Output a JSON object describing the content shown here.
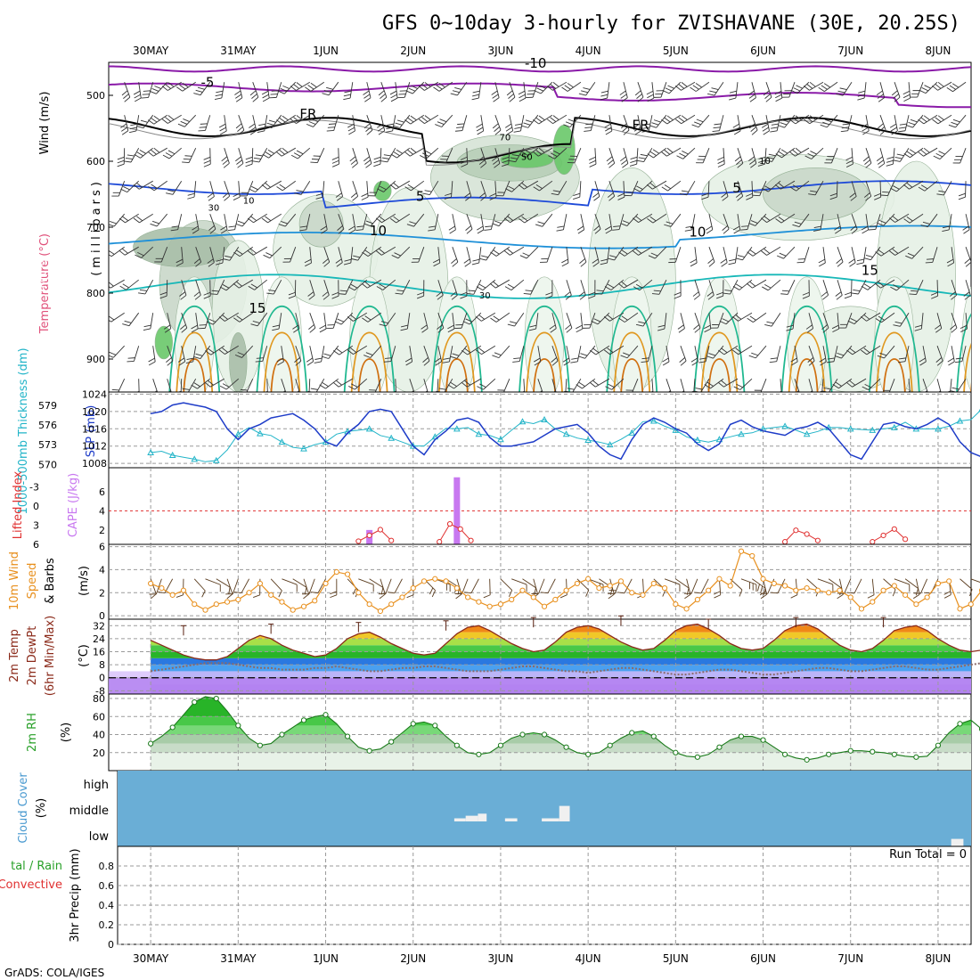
{
  "title": "GFS 0~10day 3-hourly for ZVISHAVANE (30E, 20.25S)",
  "footer": "GrADS: COLA/IGES",
  "run_total_label": "Run Total = 0",
  "dates": [
    "30MAY",
    "31MAY",
    "1JUN",
    "2JUN",
    "3JUN",
    "4JUN",
    "5JUN",
    "6JUN",
    "7JUN",
    "8JUN"
  ],
  "panel_labels": {
    "profile": {
      "wind": "Wind (m/s)",
      "temperature": "Temperature (°C)",
      "rh": "RH (%)",
      "millibars": "(millibars)"
    },
    "slp": {
      "thickness": "1000-500mb Thickness (dm)",
      "slp": "SLP (mb)"
    },
    "cape": {
      "li": "Lifted Index",
      "cape": "CAPE (J/kg)"
    },
    "wind10": {
      "a": "10m Wind",
      "b": "Speed",
      "c": "& Barbs",
      "unit": "(m/s)"
    },
    "temp2m": {
      "a": "2m Temp",
      "b": "2m DewPt",
      "c": "(6hr Min/Max)",
      "unit": "(°C)"
    },
    "rh2m": {
      "a": "2m RH",
      "unit": "(%)"
    },
    "cloud": {
      "a": "Cloud Cover",
      "unit": "(%)"
    },
    "precip": {
      "a": "tal / Rain",
      "b": "Convective",
      "c": "3hr Precip (mm)"
    }
  },
  "colors": {
    "slp_line": "#1e3cc8",
    "thickness_line": "#22b4c8",
    "cape_bar": "#c878f0",
    "li_line": "#e03030",
    "wind_line": "#e8901e",
    "barb": "#5a3c1e",
    "rh_fill": "#28c828",
    "cloud_bg": "#6aaed6",
    "temp_line": "#8b2a1a",
    "dew_line": "#8a6a6a"
  },
  "chart_data": [
    {
      "type": "heatmap",
      "name": "profile",
      "ylabel": "Temperature (°C) Wind (m/s) (millibars)",
      "yticks": [
        500,
        600,
        700,
        800,
        900
      ],
      "ylim": [
        950,
        450
      ],
      "contour_labels": [
        {
          "text": "-10",
          "x": 4.4,
          "p": 458
        },
        {
          "text": "-5",
          "x": 0.65,
          "p": 487
        },
        {
          "text": "FR",
          "x": 1.8,
          "p": 535
        },
        {
          "text": "FR",
          "x": 5.6,
          "p": 552
        },
        {
          "text": "5",
          "x": 3.08,
          "p": 660
        },
        {
          "text": "5",
          "x": 6.7,
          "p": 647
        },
        {
          "text": "10",
          "x": 2.6,
          "p": 712
        },
        {
          "text": "10",
          "x": 6.25,
          "p": 714
        },
        {
          "text": "15",
          "x": 8.22,
          "p": 772
        },
        {
          "text": "15",
          "x": 1.22,
          "p": 830
        },
        {
          "text": "30",
          "x": 0.72,
          "p": 675
        },
        {
          "text": "10",
          "x": 1.12,
          "p": 664
        },
        {
          "text": "30",
          "x": 3.82,
          "p": 808
        },
        {
          "text": "50",
          "x": 4.3,
          "p": 598
        },
        {
          "text": "70",
          "x": 4.05,
          "p": 568
        },
        {
          "text": "10",
          "x": 7.02,
          "p": 604
        }
      ]
    },
    {
      "type": "line",
      "name": "slp-thickness",
      "yticks_left": [
        570,
        573,
        576,
        579
      ],
      "ylim_left": [
        569.5,
        581
      ],
      "yticks_right": [
        1008,
        1012,
        1016,
        1020,
        1024
      ],
      "ylim_right": [
        1007,
        1024.5
      ],
      "x_step_days": 0.125,
      "series": [
        {
          "name": "SLP (mb)",
          "axis": "right",
          "values": [
            1019.5,
            1020,
            1021.5,
            1022,
            1021.5,
            1021,
            1020,
            1016,
            1013.5,
            1016,
            1017,
            1018.5,
            1019,
            1019.5,
            1018,
            1016,
            1013,
            1012,
            1015,
            1017,
            1020,
            1020.5,
            1020,
            1016,
            1012,
            1010,
            1013.5,
            1015.5,
            1018,
            1018.5,
            1017.5,
            1014,
            1012,
            1012,
            1012.5,
            1013,
            1014.5,
            1016,
            1016.5,
            1017,
            1015,
            1012,
            1010,
            1009,
            1013.5,
            1017,
            1018.5,
            1017.5,
            1016,
            1015,
            1012.5,
            1011,
            1012.5,
            1017,
            1018,
            1016.5,
            1015.5,
            1015,
            1014.5,
            1016,
            1016.5,
            1017.5,
            1016,
            1013,
            1010,
            1009,
            1013,
            1017,
            1017.5,
            1016.5,
            1016,
            1017,
            1018.5,
            1017,
            1013,
            1010.5,
            1009.5,
            1012,
            1016.5,
            1016,
            1013.5,
            1013.5,
            1017,
            1020,
            1020.5,
            1020,
            1020,
            1019,
            1016.5,
            1013,
            1012,
            1018.5,
            1020,
            1021,
            1024
          ]
        },
        {
          "name": "1000-500mb Thickness (dm)",
          "axis": "left",
          "values": [
            571.8,
            572,
            571.4,
            571.1,
            570.8,
            570.4,
            570.6,
            572.2,
            574.6,
            575.6,
            574.7,
            574.4,
            573.4,
            572.6,
            572.4,
            573,
            573.4,
            574.6,
            575,
            575.2,
            575.4,
            574.4,
            574,
            573.4,
            572.8,
            572.8,
            574.2,
            575.5,
            575.4,
            575.6,
            574.6,
            574.4,
            573.8,
            575.2,
            576.5,
            576.2,
            576.8,
            575.4,
            574.6,
            574,
            573.7,
            573.4,
            573,
            573.8,
            574.8,
            576.5,
            576.6,
            575.8,
            575.2,
            574.2,
            573.7,
            573.4,
            573.8,
            574.2,
            574.6,
            574.8,
            575.4,
            575.6,
            575.8,
            575.2,
            574.6,
            575,
            575.6,
            575.6,
            575.4,
            575.3,
            575.2,
            575.4,
            575.6,
            576.4,
            575.4,
            575.4,
            575.4,
            575.8,
            576.6,
            576.8,
            578.4,
            579.8,
            579.4,
            577.6,
            576.4,
            576.2,
            576.2,
            576.8,
            577.6,
            578.4,
            579.4,
            578.8,
            577.4,
            574.8,
            573.4,
            571.8,
            570.6,
            570.6,
            571
          ]
        }
      ]
    },
    {
      "type": "bar",
      "name": "cape-li",
      "yticks_left": [
        -3,
        0,
        3,
        6
      ],
      "ylim_left": [
        6,
        -6
      ],
      "yticks_right": [
        2,
        4,
        6
      ],
      "ylim_right": [
        0.5,
        8.5
      ],
      "zero_line_cape": 4,
      "cape_bars": [
        {
          "x": 2.5,
          "value": 2
        },
        {
          "x": 3.5,
          "value": 7.5
        }
      ],
      "li_segments": [
        {
          "x": [
            2.375,
            2.5,
            2.625,
            2.75
          ],
          "values": [
            5.5,
            4.6,
            3.7,
            5.4
          ]
        },
        {
          "x": [
            3.3,
            3.42,
            3.54,
            3.66
          ],
          "values": [
            5.6,
            2.8,
            3.6,
            5.4
          ]
        },
        {
          "x": [
            7.25,
            7.375,
            7.5,
            7.625
          ],
          "values": [
            5.6,
            3.8,
            4.4,
            5.4
          ]
        },
        {
          "x": [
            8.25,
            8.375,
            8.5,
            8.625
          ],
          "values": [
            5.6,
            4.6,
            3.6,
            5.2
          ]
        }
      ]
    },
    {
      "type": "line",
      "name": "wind-10m",
      "yticks": [
        0,
        2,
        4,
        6
      ],
      "ylim": [
        -0.3,
        6.2
      ],
      "x_step_days": 0.125,
      "series": [
        {
          "name": "Speed",
          "values": [
            2.8,
            2.4,
            1.8,
            2.2,
            1,
            0.5,
            1,
            1.2,
            1.4,
            2,
            2.8,
            1.8,
            1.2,
            0.5,
            0.8,
            1.3,
            2.8,
            3.8,
            3.6,
            2,
            1,
            0.4,
            1,
            1.6,
            2.4,
            3,
            3.2,
            3,
            2.4,
            1.6,
            1.2,
            0.8,
            1,
            1.4,
            2.2,
            1.6,
            0.8,
            1.4,
            2.2,
            2.8,
            3.2,
            2.4,
            2.6,
            3,
            2,
            1.8,
            2.8,
            2.4,
            1,
            0.6,
            1.4,
            2.2,
            3.2,
            2.6,
            5.6,
            5.2,
            3.2,
            2.8,
            2.6,
            2.2,
            2.4,
            2.2,
            2,
            2.2,
            1.6,
            0.6,
            1.2,
            2.2,
            2.6,
            1.8,
            1,
            1.6,
            2.8,
            3,
            0.6,
            1,
            2.2,
            2.6,
            2.2,
            2.4,
            1.4,
            0.8,
            2.6,
            3.2,
            4,
            4.4,
            4.6,
            3.2,
            2.4,
            0.6,
            1.2,
            2.4,
            1.6,
            0.4,
            3.8
          ]
        }
      ]
    },
    {
      "type": "area",
      "name": "temp-2m",
      "yticks": [
        -8,
        0,
        8,
        16,
        24,
        32
      ],
      "ylim": [
        -10,
        36
      ],
      "x_step_days": 0.125,
      "series": [
        {
          "name": "2m Temp",
          "values": [
            23,
            20,
            17,
            14,
            12,
            11,
            11,
            13,
            18,
            23,
            26,
            24,
            20,
            17,
            15,
            13,
            14,
            18,
            24,
            27,
            28,
            25,
            21,
            18,
            15,
            14,
            15,
            21,
            27,
            31,
            32,
            29,
            25,
            21,
            18,
            16,
            17,
            22,
            28,
            31,
            32,
            30,
            26,
            22,
            19,
            17,
            18,
            23,
            29,
            32,
            33,
            30,
            26,
            21,
            18,
            17,
            18,
            23,
            29,
            32,
            33,
            30,
            25,
            20,
            17,
            16,
            18,
            23,
            29,
            31,
            32,
            29,
            24,
            20,
            17,
            16,
            17,
            22,
            28,
            31,
            32,
            29,
            24,
            20,
            18,
            17,
            18,
            23,
            29,
            32,
            32,
            28,
            23,
            19,
            17,
            15,
            14,
            13
          ]
        },
        {
          "name": "2m DewPt",
          "values": [
            4,
            5,
            6,
            7,
            8,
            9,
            9,
            9,
            8,
            7,
            6,
            6,
            5,
            5,
            5,
            6,
            6,
            7,
            6,
            5,
            4,
            4,
            5,
            6,
            6,
            7,
            7,
            6,
            5,
            4,
            4,
            4,
            5,
            6,
            7,
            7,
            6,
            5,
            4,
            4,
            3,
            4,
            5,
            6,
            6,
            5,
            4,
            3,
            2,
            2,
            3,
            4,
            5,
            5,
            4,
            3,
            2,
            2,
            3,
            4,
            5,
            6,
            6,
            5,
            4,
            4,
            5,
            6,
            7,
            7,
            6,
            5,
            5,
            6,
            7,
            8,
            9,
            9,
            8,
            7,
            7,
            8,
            8,
            7,
            6,
            5,
            4,
            3,
            2,
            1,
            0,
            -1,
            -2,
            -4,
            -6,
            -4
          ]
        },
        {
          "name": "6hr Max",
          "x": [
            0.375,
            1.375,
            2.375,
            3.375,
            4.375,
            5.375,
            6.375,
            7.375,
            8.375
          ],
          "values": [
            26,
            27,
            28,
            29,
            31,
            32,
            30,
            31,
            31
          ]
        }
      ]
    },
    {
      "type": "area",
      "name": "rh-2m",
      "yticks": [
        20,
        40,
        60,
        80
      ],
      "ylim": [
        0,
        85
      ],
      "x_step_days": 0.125,
      "series": [
        {
          "name": "2m RH",
          "values": [
            30,
            38,
            48,
            62,
            76,
            82,
            80,
            66,
            50,
            36,
            28,
            30,
            40,
            48,
            56,
            60,
            62,
            52,
            38,
            26,
            22,
            24,
            32,
            42,
            52,
            54,
            50,
            38,
            28,
            20,
            18,
            20,
            28,
            36,
            40,
            42,
            40,
            34,
            26,
            20,
            18,
            20,
            28,
            36,
            42,
            44,
            38,
            28,
            20,
            16,
            15,
            18,
            26,
            34,
            38,
            38,
            34,
            26,
            18,
            14,
            12,
            14,
            18,
            20,
            22,
            22,
            21,
            20,
            18,
            16,
            15,
            16,
            28,
            42,
            52,
            56,
            46,
            32,
            22,
            18,
            17,
            20,
            26,
            32,
            36,
            38,
            34,
            28,
            20,
            16,
            16,
            20,
            26,
            30,
            30,
            32,
            34
          ]
        }
      ]
    },
    {
      "type": "bar",
      "name": "cloud-cover",
      "yticks": [
        "high",
        "middle",
        "low"
      ],
      "blocks": [
        {
          "x0": 3.47,
          "x1": 3.6,
          "level": "middle",
          "value": 12
        },
        {
          "x0": 3.6,
          "x1": 3.74,
          "level": "middle",
          "value": 22
        },
        {
          "x0": 3.74,
          "x1": 3.84,
          "level": "middle",
          "value": 30
        },
        {
          "x0": 4.05,
          "x1": 4.19,
          "level": "middle",
          "value": 12
        },
        {
          "x0": 4.47,
          "x1": 4.67,
          "level": "middle",
          "value": 12
        },
        {
          "x0": 4.67,
          "x1": 4.79,
          "level": "middle",
          "value": 60
        },
        {
          "x0": 9.15,
          "x1": 9.29,
          "level": "low",
          "value": 30
        }
      ]
    },
    {
      "type": "line",
      "name": "precip-3hr",
      "yticks": [
        0,
        0.2,
        0.4,
        0.6,
        0.8
      ],
      "ylim": [
        0,
        1
      ],
      "series": []
    }
  ]
}
